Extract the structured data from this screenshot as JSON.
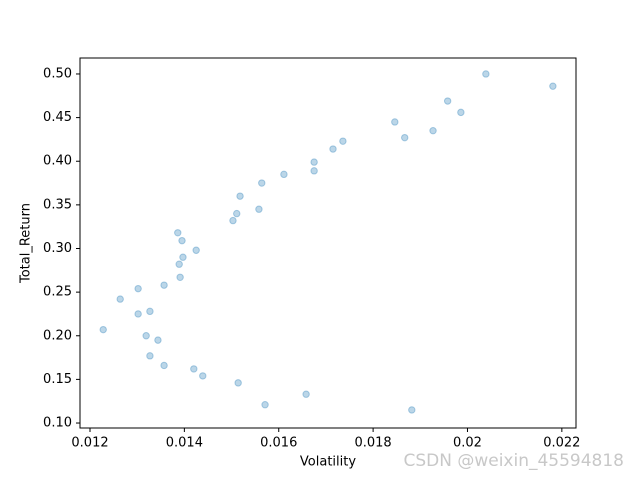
{
  "chart_data": {
    "type": "scatter",
    "xlabel": "Volatility",
    "ylabel": "Total_Return",
    "watermark": "CSDN @weixin_45594818",
    "color": "#1f77b4",
    "x": [
      0.02039,
      0.02181,
      0.01958,
      0.01986,
      0.01846,
      0.01927,
      0.01867,
      0.01736,
      0.01715,
      0.01675,
      0.01675,
      0.01611,
      0.01564,
      0.01518,
      0.01511,
      0.01558,
      0.01503,
      0.01386,
      0.01395,
      0.01425,
      0.01397,
      0.01389,
      0.01391,
      0.01357,
      0.01302,
      0.01264,
      0.01327,
      0.01302,
      0.01228,
      0.01319,
      0.01344,
      0.01327,
      0.01357,
      0.0142,
      0.01439,
      0.01514,
      0.01658,
      0.01571,
      0.01882
    ],
    "values": [
      0.5,
      0.486,
      0.469,
      0.456,
      0.445,
      0.435,
      0.427,
      0.423,
      0.414,
      0.399,
      0.389,
      0.385,
      0.375,
      0.36,
      0.34,
      0.345,
      0.332,
      0.318,
      0.309,
      0.298,
      0.29,
      0.282,
      0.267,
      0.258,
      0.254,
      0.242,
      0.228,
      0.225,
      0.207,
      0.2,
      0.195,
      0.177,
      0.166,
      0.162,
      0.154,
      0.146,
      0.133,
      0.121,
      0.115
    ],
    "xlim": [
      0.011788,
      0.0223
    ],
    "ylim": [
      0.0943,
      0.5183
    ],
    "xticks": [
      0.012,
      0.014,
      0.016,
      0.018,
      0.02,
      0.022
    ],
    "yticks": [
      {
        "value": 0.1,
        "label": "0.10"
      },
      0.15,
      {
        "value": 0.2,
        "label": "0.20"
      },
      0.25,
      {
        "value": 0.3,
        "label": "0.30"
      },
      0.35,
      {
        "value": 0.4,
        "label": "0.40"
      },
      0.45,
      {
        "value": 0.5,
        "label": "0.50"
      }
    ]
  }
}
